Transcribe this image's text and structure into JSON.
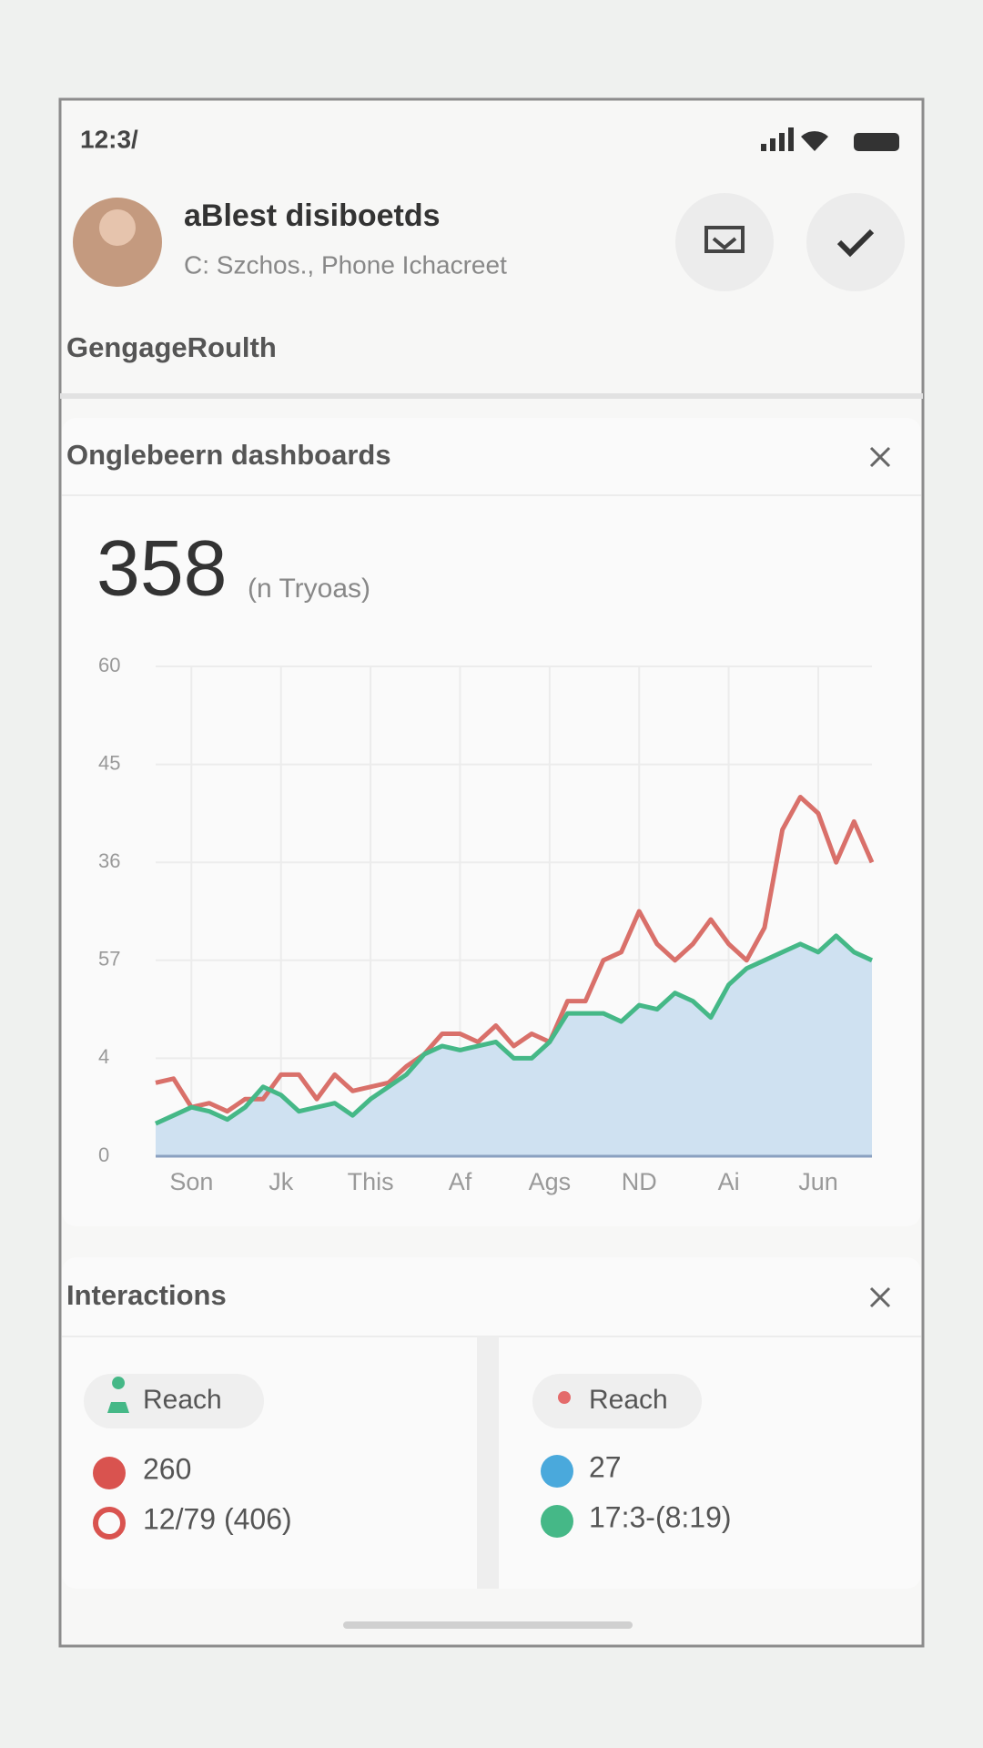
{
  "status": {
    "time": "12:3/"
  },
  "header": {
    "name": "aBlest disiboetds",
    "subtitle": "C: Szchos., Phone Ichacreet",
    "section": "GengageRoulth"
  },
  "dashboard": {
    "title": "Onglebeern dashboards",
    "total": "358",
    "unit": "(n Tryoas)",
    "chart_data": {
      "type": "line",
      "categories": [
        null,
        null,
        "Son",
        null,
        null,
        null,
        null,
        "Jk",
        null,
        null,
        null,
        null,
        "This",
        null,
        null,
        null,
        null,
        "Af",
        null,
        null,
        null,
        null,
        "Ags",
        null,
        null,
        null,
        null,
        "ND",
        null,
        null,
        null,
        null,
        "Ai",
        null,
        null,
        null,
        null,
        "Jun",
        null,
        null,
        null
      ],
      "series": [
        {
          "name": "Red",
          "color": "#d9706a",
          "values": [
            9,
            9.5,
            6,
            6.5,
            5.5,
            7,
            7,
            10,
            10,
            7,
            10,
            8,
            8.5,
            9,
            11,
            12.5,
            15,
            15,
            14,
            16,
            13.5,
            15,
            14,
            19,
            19,
            24,
            25,
            30,
            26,
            24,
            26,
            29,
            26,
            24,
            28,
            40,
            44,
            42,
            36,
            41,
            36
          ]
        },
        {
          "name": "Green",
          "color": "#45b887",
          "fill": "#cfe1f1",
          "values": [
            4,
            5,
            6,
            5.5,
            4.5,
            6,
            8.5,
            7.5,
            5.5,
            6,
            6.5,
            5,
            7,
            8.5,
            10,
            12.5,
            13.5,
            13,
            13.5,
            14,
            12,
            12,
            14,
            17.5,
            17.5,
            17.5,
            16.5,
            18.5,
            18,
            20,
            19,
            17,
            21,
            23,
            24,
            25,
            26,
            25,
            27,
            25,
            24
          ]
        }
      ],
      "ylim": [
        0,
        60
      ],
      "yticks": [
        0,
        {
          "value": 12,
          "label": "4"
        },
        {
          "value": 24,
          "label": "57"
        },
        36,
        {
          "value": 48,
          "label": "45"
        },
        60
      ],
      "grid": true
    }
  },
  "interactions": {
    "title": "Interactions",
    "cells": [
      {
        "label": "Reach",
        "primary": "260",
        "secondary": "12/79 (406)"
      },
      {
        "label": "Reach",
        "primary": "27",
        "secondary": "17:3-(8:19)"
      }
    ]
  }
}
